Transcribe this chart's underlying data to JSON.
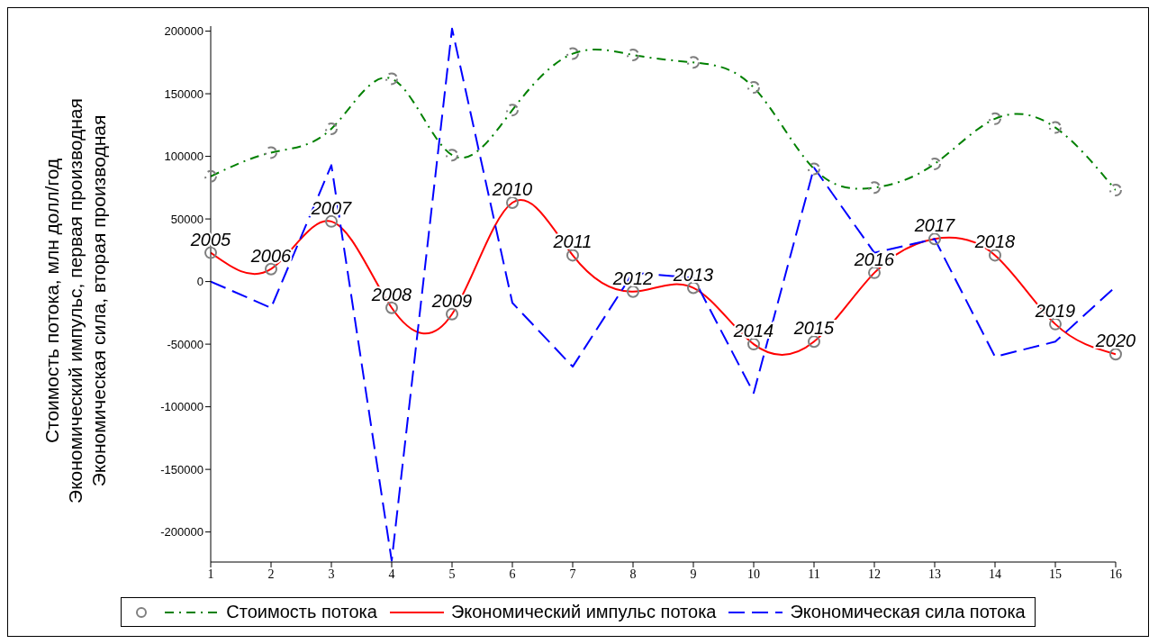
{
  "chart_data": {
    "type": "line",
    "ylabel": "Стоимость потока, млн долл/год\nЭкономический импульс, первая производная\nЭкономическая сила, вторая производная",
    "x": [
      1,
      2,
      3,
      4,
      5,
      6,
      7,
      8,
      9,
      10,
      11,
      12,
      13,
      14,
      15,
      16
    ],
    "xlim": [
      1,
      16
    ],
    "xticks": [
      1,
      2,
      3,
      4,
      5,
      6,
      7,
      8,
      9,
      10,
      11,
      12,
      13,
      14,
      15,
      16
    ],
    "ylim": [
      -224000,
      204000
    ],
    "yticks": [
      -200000,
      -150000,
      -100000,
      -50000,
      0,
      50000,
      100000,
      150000,
      200000
    ],
    "grid": false,
    "legend": "bottom",
    "series": [
      {
        "name": "Стоимость потока",
        "color": "#008000",
        "line_style": "dashdot",
        "marker": "circle",
        "values": [
          84000,
          103000,
          122000,
          162000,
          101000,
          137000,
          182000,
          181000,
          175000,
          155000,
          90000,
          75000,
          94000,
          130000,
          123000,
          73000
        ]
      },
      {
        "name": "Экономический импульс потока",
        "color": "#ff0000",
        "line_style": "solid",
        "marker": "circle",
        "values": [
          23000,
          10000,
          48000,
          -21000,
          -26000,
          63000,
          21000,
          -8000,
          -5000,
          -50000,
          -48000,
          7000,
          34000,
          21000,
          -34000,
          -58000
        ]
      },
      {
        "name": "Экономическая сила потока",
        "color": "#0000ff",
        "line_style": "dashed",
        "marker": "none",
        "values": [
          0,
          -21000,
          93000,
          -223000,
          202000,
          -17000,
          -68000,
          7000,
          3000,
          -89000,
          91000,
          23000,
          34000,
          -60000,
          -48000,
          -4000
        ]
      }
    ],
    "annotations": [
      {
        "text": "2005",
        "x": 1,
        "y": 23000
      },
      {
        "text": "2006",
        "x": 2,
        "y": 10000
      },
      {
        "text": "2007",
        "x": 3,
        "y": 48000
      },
      {
        "text": "2008",
        "x": 4,
        "y": -21000
      },
      {
        "text": "2009",
        "x": 5,
        "y": -26000
      },
      {
        "text": "2010",
        "x": 6,
        "y": 63000
      },
      {
        "text": "2011",
        "x": 7,
        "y": 21000
      },
      {
        "text": "2012",
        "x": 8,
        "y": -8000
      },
      {
        "text": "2013",
        "x": 9,
        "y": -5000
      },
      {
        "text": "2014",
        "x": 10,
        "y": -50000
      },
      {
        "text": "2015",
        "x": 11,
        "y": -48000
      },
      {
        "text": "2016",
        "x": 12,
        "y": 7000
      },
      {
        "text": "2017",
        "x": 13,
        "y": 34000
      },
      {
        "text": "2018",
        "x": 14,
        "y": 21000
      },
      {
        "text": "2019",
        "x": 15,
        "y": -34000
      },
      {
        "text": "2020",
        "x": 16,
        "y": -58000
      }
    ]
  }
}
